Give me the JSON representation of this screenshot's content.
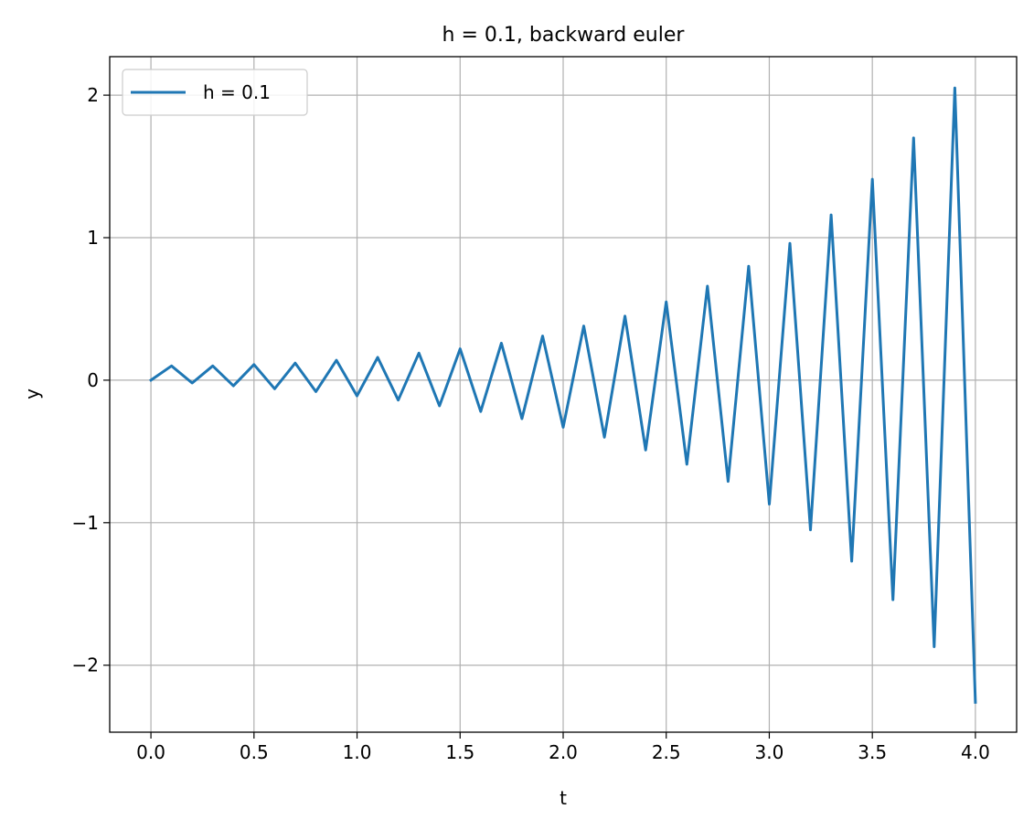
{
  "chart_data": {
    "type": "line",
    "title": "h = 0.1, backward euler",
    "xlabel": "t",
    "ylabel": "y",
    "xlim": [
      -0.2,
      4.2
    ],
    "ylim": [
      -2.47,
      2.27
    ],
    "xticks": [
      0.0,
      0.5,
      1.0,
      1.5,
      2.0,
      2.5,
      3.0,
      3.5,
      4.0
    ],
    "xtick_labels": [
      "0.0",
      "0.5",
      "1.0",
      "1.5",
      "2.0",
      "2.5",
      "3.0",
      "3.5",
      "4.0"
    ],
    "yticks": [
      -2,
      -1,
      0,
      1,
      2
    ],
    "ytick_labels": [
      "−2",
      "−1",
      "0",
      "1",
      "2"
    ],
    "grid": true,
    "legend_position": "upper-left",
    "series": [
      {
        "name": "h = 0.1",
        "color": "#1f77b4",
        "x": [
          0.0,
          0.1,
          0.2,
          0.3,
          0.4,
          0.5,
          0.6,
          0.7,
          0.8,
          0.9,
          1.0,
          1.1,
          1.2,
          1.3,
          1.4,
          1.5,
          1.6,
          1.7,
          1.8,
          1.9,
          2.0,
          2.1,
          2.2,
          2.3,
          2.4,
          2.5,
          2.6,
          2.7,
          2.8,
          2.9,
          3.0,
          3.1,
          3.2,
          3.3,
          3.4,
          3.5,
          3.6,
          3.7,
          3.8,
          3.9,
          4.0
        ],
        "y": [
          0.0,
          0.1,
          -0.02,
          0.1,
          -0.04,
          0.11,
          -0.06,
          0.12,
          -0.08,
          0.14,
          -0.11,
          0.16,
          -0.14,
          0.19,
          -0.18,
          0.22,
          -0.22,
          0.26,
          -0.27,
          0.31,
          -0.33,
          0.38,
          -0.4,
          0.45,
          -0.49,
          0.55,
          -0.59,
          0.66,
          -0.71,
          0.8,
          -0.87,
          0.96,
          -1.05,
          1.16,
          -1.27,
          1.41,
          -1.54,
          1.7,
          -1.87,
          2.05,
          -2.26
        ]
      }
    ]
  }
}
